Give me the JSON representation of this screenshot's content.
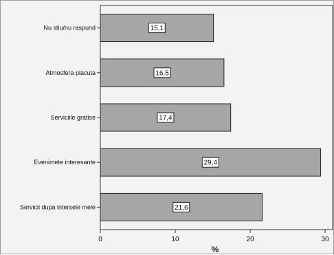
{
  "chart_data": {
    "type": "bar",
    "orientation": "horizontal",
    "categories": [
      "Nu stiu/nu raspund",
      "Atmosfera placuta",
      "Serviciile gratise",
      "Evenimete interesante",
      "Servicii dupa intersele mele"
    ],
    "values": [
      15.1,
      16.5,
      17.4,
      29.4,
      21.6
    ],
    "value_labels": [
      "15,1",
      "16,5",
      "17,4",
      "29,4",
      "21,6"
    ],
    "xlabel": "%",
    "xlim": [
      0,
      31
    ],
    "xticks": [
      0,
      10,
      20,
      30
    ],
    "grid": false,
    "bar_color": "#a6a6a6",
    "plot_background": "#f3f3f3"
  }
}
